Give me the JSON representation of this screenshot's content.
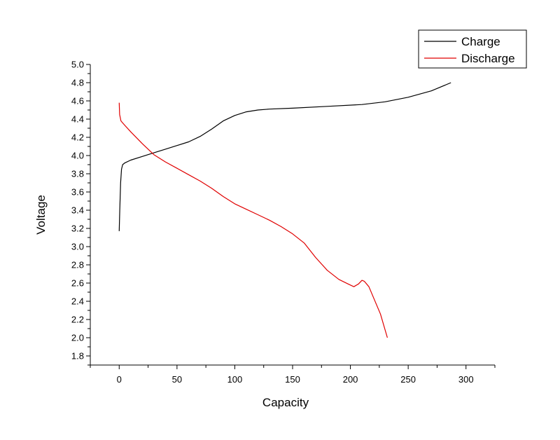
{
  "chart_data": {
    "type": "line",
    "title": "",
    "xlabel": "Capacity",
    "ylabel": "Voltage",
    "xlim": [
      -25,
      325
    ],
    "ylim": [
      1.7,
      5.0
    ],
    "x_ticks": [
      0,
      50,
      100,
      150,
      200,
      250,
      300
    ],
    "y_ticks": [
      1.8,
      2.0,
      2.2,
      2.4,
      2.6,
      2.8,
      3.0,
      3.2,
      3.4,
      3.6,
      3.8,
      4.0,
      4.2,
      4.4,
      4.6,
      4.8,
      5.0
    ],
    "grid": false,
    "legend_position": "top-right",
    "series": [
      {
        "name": "Charge",
        "color": "#000000",
        "points": [
          [
            0,
            3.17
          ],
          [
            0.5,
            3.4
          ],
          [
            1.2,
            3.7
          ],
          [
            2.0,
            3.85
          ],
          [
            3.0,
            3.9
          ],
          [
            5,
            3.92
          ],
          [
            10,
            3.95
          ],
          [
            20,
            3.99
          ],
          [
            30,
            4.03
          ],
          [
            40,
            4.07
          ],
          [
            50,
            4.11
          ],
          [
            60,
            4.15
          ],
          [
            70,
            4.21
          ],
          [
            80,
            4.29
          ],
          [
            90,
            4.38
          ],
          [
            100,
            4.44
          ],
          [
            110,
            4.48
          ],
          [
            120,
            4.5
          ],
          [
            130,
            4.51
          ],
          [
            150,
            4.52
          ],
          [
            180,
            4.54
          ],
          [
            210,
            4.56
          ],
          [
            230,
            4.59
          ],
          [
            250,
            4.64
          ],
          [
            270,
            4.71
          ],
          [
            287,
            4.8
          ]
        ]
      },
      {
        "name": "Discharge",
        "color": "#e00000",
        "points": [
          [
            0,
            4.58
          ],
          [
            0.4,
            4.45
          ],
          [
            1.5,
            4.38
          ],
          [
            5,
            4.33
          ],
          [
            10,
            4.26
          ],
          [
            20,
            4.13
          ],
          [
            30,
            4.01
          ],
          [
            40,
            3.93
          ],
          [
            50,
            3.86
          ],
          [
            60,
            3.79
          ],
          [
            70,
            3.72
          ],
          [
            80,
            3.64
          ],
          [
            90,
            3.55
          ],
          [
            100,
            3.47
          ],
          [
            110,
            3.41
          ],
          [
            120,
            3.35
          ],
          [
            130,
            3.29
          ],
          [
            140,
            3.22
          ],
          [
            150,
            3.14
          ],
          [
            160,
            3.04
          ],
          [
            170,
            2.88
          ],
          [
            180,
            2.74
          ],
          [
            190,
            2.64
          ],
          [
            198,
            2.59
          ],
          [
            203,
            2.56
          ],
          [
            207,
            2.59
          ],
          [
            210,
            2.63
          ],
          [
            212,
            2.62
          ],
          [
            216,
            2.56
          ],
          [
            220,
            2.44
          ],
          [
            226,
            2.26
          ],
          [
            232,
            2.0
          ]
        ]
      }
    ]
  }
}
